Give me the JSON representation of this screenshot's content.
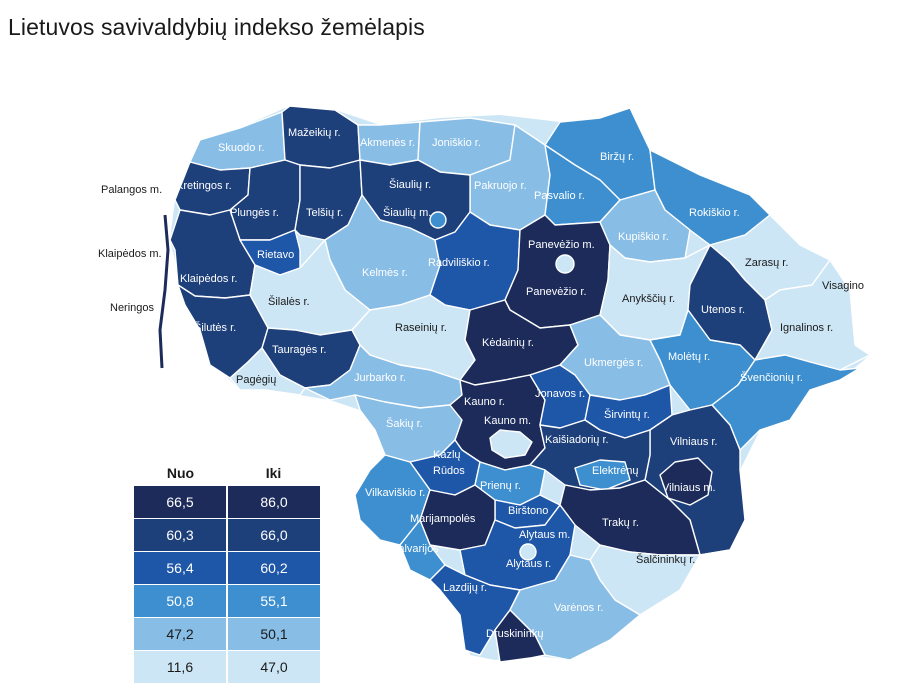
{
  "title": "Lietuvos savivaldybių indekso žemėlapis",
  "colors": {
    "c1": "#1c2b5a",
    "c2": "#1d3f7a",
    "c3": "#1e56a8",
    "c4": "#3d8fcf",
    "c5": "#88bde6",
    "c6": "#cde6f5"
  },
  "legend": {
    "header_from": "Nuo",
    "header_to": "Iki",
    "rows": [
      {
        "from": "66,5",
        "to": "86,0",
        "color": "#1c2b5a",
        "text_color": "#ffffff"
      },
      {
        "from": "60,3",
        "to": "66,0",
        "color": "#1d3f7a",
        "text_color": "#ffffff"
      },
      {
        "from": "56,4",
        "to": "60,2",
        "color": "#1e56a8",
        "text_color": "#ffffff"
      },
      {
        "from": "50,8",
        "to": "55,1",
        "color": "#3d8fcf",
        "text_color": "#ffffff"
      },
      {
        "from": "47,2",
        "to": "50,1",
        "color": "#88bde6",
        "text_color": "#1a1a1a"
      },
      {
        "from": "11,6",
        "to": "47,0",
        "color": "#cde6f5",
        "text_color": "#1a1a1a"
      }
    ]
  },
  "municipalities": {
    "skuodo": "Skuodo r.",
    "mazeikiu": "Mažeikių r.",
    "akmenes": "Akmenės r.",
    "joniskio": "Joniškio r.",
    "birzu": "Biržų r.",
    "palangos": "Palangos m.",
    "kretingos": "Kretingos r.",
    "siauliu_r": "Šiaulių r.",
    "pakruojo": "Pakruojo r.",
    "pasvalio": "Pasvalio r.",
    "rokiskio": "Rokiškio r.",
    "plunges": "Plungės r.",
    "telsiu": "Telšių r.",
    "siauliu_m": "Šiaulių m.",
    "klaipedos_m": "Klaipėdos m.",
    "rietavo": "Rietavo",
    "radviliskio": "Radviliškio r.",
    "panevezio_m": "Panevėžio m.",
    "kupiskio": "Kupiškio r.",
    "zarasu": "Zarasų r.",
    "kelmes": "Kelmės r.",
    "klaipedos_r": "Klaipėdos r.",
    "visagino": "Visagino",
    "panevezio_r": "Panevėžio r.",
    "anyksciu": "Anykščių r.",
    "neringos": "Neringos",
    "silales": "Šilalės r.",
    "utenos": "Utenos r.",
    "siluteso": "Šilutės r.",
    "raseiniu": "Raseinių r.",
    "ignalinos": "Ignalinos r.",
    "kedainiu": "Kėdainių r.",
    "taurages": "Tauragės r.",
    "moletu": "Molėtų r.",
    "ukmerges": "Ukmergės r.",
    "pagegiu": "Pagėgių",
    "jurbarko": "Jurbarko r.",
    "svencioniu": "Švenčionių r.",
    "jonavos": "Jonavos r.",
    "kauno_r": "Kauno r.",
    "sirvintu": "Širvintų r.",
    "kauno_m": "Kauno m.",
    "sakiu": "Šakių r.",
    "kaisiadoriu": "Kaišiadorių r.",
    "vilniaus_r": "Vilniaus r.",
    "kazlu_1": "Kazlų",
    "kazlu_2": "Rūdos",
    "elektrenu": "Elektrėnų",
    "vilniaus_m": "Vilniaus m.",
    "prienu": "Prienų r.",
    "vilkaviskio": "Vilkaviškio r.",
    "birstono": "Birštono",
    "marijampoles": "Marijampolės",
    "traku": "Trakų r.",
    "alytaus_m": "Alytaus m.",
    "kalvarijos": "Kalvarijos",
    "alytaus_r": "Alytaus r.",
    "salcininku": "Šalčininkų r.",
    "lazdiju": "Lazdijų r.",
    "varenos": "Varėnos r.",
    "druskininku": "Druskininkų"
  }
}
